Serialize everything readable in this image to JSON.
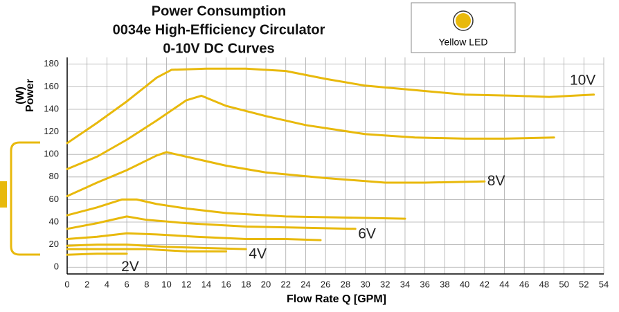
{
  "chart_data": {
    "type": "line",
    "title": [
      "Power Consumption",
      "0034e High-Efficiency Circulator",
      "0-10V DC Curves"
    ],
    "legend": "Yellow LED",
    "x_label": "Flow Rate Q [GPM]",
    "y_label": [
      "Power",
      "(W)"
    ],
    "xlim": [
      0,
      54
    ],
    "xticks": [
      0,
      2,
      4,
      6,
      8,
      10,
      12,
      14,
      16,
      18,
      20,
      22,
      24,
      26,
      28,
      30,
      32,
      34,
      36,
      38,
      40,
      42,
      44,
      46,
      48,
      50,
      52,
      54
    ],
    "ylim": [
      -6,
      186
    ],
    "yticks": [
      0,
      20,
      40,
      60,
      80,
      100,
      120,
      140,
      160,
      180
    ],
    "grid": true,
    "color": "#e8b90c",
    "series": [
      {
        "name": "10V",
        "x": [
          0,
          3,
          6,
          9,
          10.5,
          14,
          18,
          22,
          26,
          30,
          35,
          40,
          45,
          48.5,
          53
        ],
        "values": [
          110,
          128,
          147,
          168,
          175,
          176,
          176,
          174,
          167,
          161,
          157,
          153,
          152,
          151,
          153
        ]
      },
      {
        "x": [
          0,
          3,
          6,
          9,
          12,
          13.5,
          16,
          20,
          24,
          30,
          35,
          40,
          44,
          49
        ],
        "values": [
          87,
          98,
          113,
          130,
          148,
          152,
          143,
          134,
          126,
          118,
          115,
          114,
          114,
          115
        ]
      },
      {
        "name": "8V",
        "x": [
          0,
          3,
          6,
          9,
          10,
          12,
          16,
          20,
          26,
          32,
          36,
          42
        ],
        "values": [
          63,
          75,
          86,
          99,
          102,
          98,
          90,
          84,
          79,
          75,
          75,
          76
        ]
      },
      {
        "x": [
          0,
          3,
          5.5,
          7,
          9,
          12,
          16,
          22,
          28,
          34
        ],
        "values": [
          46,
          53,
          60,
          60,
          56,
          52,
          48,
          45,
          44,
          43
        ]
      },
      {
        "name": "6V",
        "x": [
          0,
          3,
          6,
          8,
          12,
          18,
          24,
          29
        ],
        "values": [
          34,
          39,
          45,
          42,
          39,
          36,
          35,
          34
        ]
      },
      {
        "x": [
          0,
          3,
          6,
          9,
          13,
          18,
          22,
          25.5
        ],
        "values": [
          25,
          27,
          30,
          29,
          27,
          25,
          25,
          24
        ]
      },
      {
        "name": "4V",
        "x": [
          0,
          3,
          6,
          10,
          14,
          18
        ],
        "values": [
          19,
          20,
          20,
          18,
          17,
          16
        ]
      },
      {
        "x": [
          0,
          4,
          8,
          12,
          16
        ],
        "values": [
          16,
          16,
          16,
          14,
          14
        ]
      },
      {
        "name": "2V",
        "x": [
          0,
          3,
          6
        ],
        "values": [
          11,
          12,
          12
        ]
      }
    ]
  }
}
